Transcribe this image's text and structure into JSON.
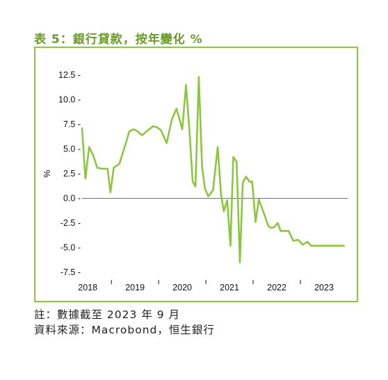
{
  "title": "表 5：銀行貸款，按年變化 %",
  "notes": {
    "note": "註：數據截至 2023 年 9 月",
    "source": "資料來源：Macrobond，恒生銀行"
  },
  "colors": {
    "line": "#8cc63f",
    "zero_line": "#e04040",
    "frame": "#8cc63f",
    "title": "#6a9a2a"
  },
  "chart_data": {
    "type": "line",
    "title": "",
    "xlabel": "",
    "ylabel": "%",
    "ylim": [
      -7.5,
      12.5
    ],
    "yticks": [
      12.5,
      10.0,
      7.5,
      5.0,
      2.5,
      0.0,
      -2.5,
      -5.0,
      -7.5
    ],
    "ytick_labels": [
      "12.5 -",
      "10.0 -",
      "7.5 -",
      "5.0 -",
      "2.5 -",
      "0.0 -",
      "-2.5 -",
      "-5.0 -",
      "-7.5 -"
    ],
    "xtick_labels": [
      "2018",
      "2019",
      "2020",
      "2021",
      "2022",
      "2023"
    ],
    "xtick_label_values": [
      2018.0,
      2019.0,
      2020.0,
      2021.0,
      2022.0,
      2023.0
    ],
    "grid": false,
    "legend": "none",
    "series": [
      {
        "x": [
          2017.88,
          2017.95,
          2018.03,
          2018.12,
          2018.2,
          2018.3,
          2018.42,
          2018.48,
          2018.55,
          2018.67,
          2018.8,
          2018.88,
          2018.97,
          2019.05,
          2019.15,
          2019.25,
          2019.38,
          2019.47,
          2019.55,
          2019.67,
          2019.78,
          2019.88,
          2020.0,
          2020.08,
          2020.15,
          2020.22,
          2020.28,
          2020.35,
          2020.42,
          2020.48,
          2020.55,
          2020.65,
          2020.75,
          2020.82,
          2020.88,
          2020.95,
          2021.02,
          2021.08,
          2021.15,
          2021.22,
          2021.28,
          2021.35,
          2021.42,
          2021.48,
          2021.55,
          2021.62,
          2021.68,
          2021.75,
          2021.82,
          2021.88,
          2021.95,
          2022.02,
          2022.08,
          2022.15,
          2022.25,
          2022.35,
          2022.45,
          2022.55,
          2022.65,
          2022.72,
          2022.8,
          2022.88,
          2022.98,
          2023.05,
          2023.12,
          2023.2,
          2023.28,
          2023.35,
          2023.42
        ],
        "y": [
          7.1,
          2.0,
          5.2,
          4.3,
          3.1,
          3.0,
          3.0,
          0.6,
          3.1,
          3.5,
          5.5,
          6.8,
          7.0,
          6.8,
          6.4,
          6.8,
          7.3,
          7.2,
          6.9,
          5.6,
          8.0,
          9.1,
          7.0,
          11.5,
          7.0,
          1.7,
          1.2,
          12.3,
          3.2,
          1.0,
          0.2,
          0.8,
          5.2,
          0.4,
          -1.3,
          -0.2,
          -4.8,
          4.2,
          3.7,
          -6.5,
          1.6,
          2.2,
          1.7,
          1.7,
          -2.4,
          -0.1,
          -0.9,
          -1.8,
          -2.8,
          -3.0,
          -2.9,
          -2.5,
          -3.3,
          -3.3,
          -3.3,
          -4.3,
          -4.2,
          -4.7,
          -4.4,
          -4.8,
          -4.8,
          -4.8,
          -4.8,
          -4.8,
          -4.8,
          -4.8,
          -4.8,
          -4.8,
          -4.8
        ]
      }
    ]
  }
}
